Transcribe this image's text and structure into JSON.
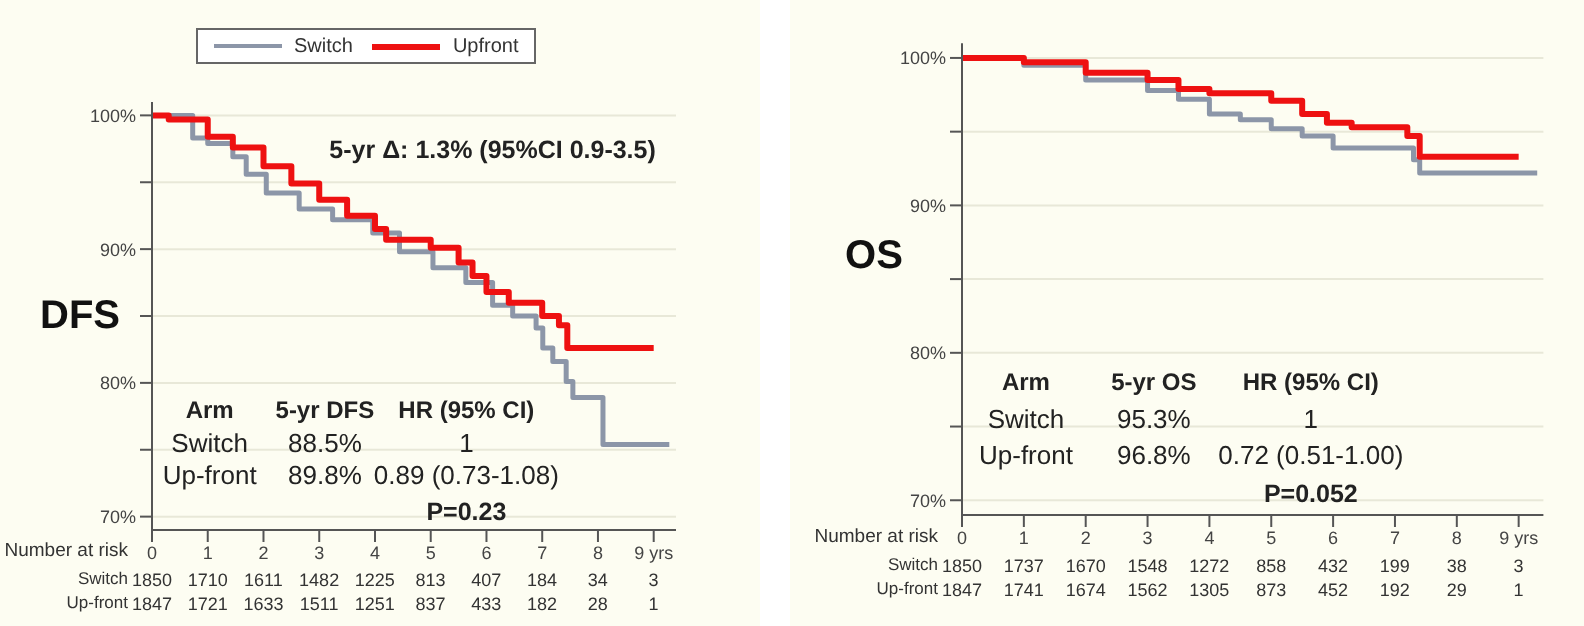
{
  "chart_data": [
    {
      "type": "step",
      "ylabel": "DFS",
      "legend": "top",
      "grid": "y",
      "marker": "none",
      "line_style": "solid",
      "xlim": [
        0,
        9.4
      ],
      "xticks": [
        0,
        1,
        2,
        3,
        4,
        5,
        6,
        7,
        8,
        {
          "value": 9,
          "label": "9 yrs"
        }
      ],
      "ylim": [
        69,
        101
      ],
      "yticks": [
        {
          "value": 70,
          "label": "70%"
        },
        {
          "value": 75,
          "label": null
        },
        {
          "value": 80,
          "label": "80%"
        },
        {
          "value": 85,
          "label": null
        },
        {
          "value": 90,
          "label": "90%"
        },
        {
          "value": 95,
          "label": null
        },
        {
          "value": 100,
          "label": "100%"
        }
      ],
      "series": [
        {
          "name": "Switch",
          "color": "#8c96a8",
          "x": [
            0,
            0.73,
            1,
            1.45,
            1.69,
            2.05,
            2.64,
            3.24,
            3.96,
            4.44,
            5.04,
            5.63,
            6.11,
            6.47,
            6.89,
            7.01,
            7.19,
            7.43,
            7.55,
            8.09,
            9.28
          ],
          "values": [
            100,
            98.3,
            97.9,
            96.9,
            95.6,
            94.2,
            93,
            92.2,
            91.2,
            89.8,
            88.6,
            87.5,
            85.8,
            85,
            84.1,
            82.6,
            81.6,
            80.1,
            78.9,
            75.4,
            75.4
          ]
        },
        {
          "name": "Upfront",
          "color": "#ee1111",
          "x": [
            0,
            0.3,
            1,
            1.45,
            2,
            2.5,
            3,
            3.5,
            4,
            4.2,
            5,
            5.5,
            5.75,
            6,
            6.4,
            7,
            7.3,
            7.45,
            9
          ],
          "values": [
            100,
            99.7,
            98.4,
            97.6,
            96.2,
            94.9,
            93.7,
            92.5,
            91.5,
            90.7,
            90.1,
            89,
            88,
            86.8,
            86,
            85,
            84.3,
            82.6,
            82.6
          ]
        }
      ],
      "annotations": [
        "5-yr Δ: 1.3% (95%CI 0.9-3.5)",
        "Arm",
        "5-yr DFS",
        "HR (95% CI)",
        "Switch",
        "88.5%",
        "1",
        "Up-front",
        "89.8%",
        "0.89 (0.73-1.08)",
        "P=0.23",
        "Number at risk",
        "Switch",
        "1850 1710 1611 1482 1225 813 407 184 34 3",
        "Up-front",
        "1847 1721 1633 1511 1251 837 433 182 28 1"
      ]
    },
    {
      "type": "step",
      "ylabel": "OS",
      "grid": "y",
      "marker": "none",
      "line_style": "solid",
      "xlim": [
        0,
        9.4
      ],
      "xticks": [
        0,
        1,
        2,
        3,
        4,
        5,
        6,
        7,
        8,
        {
          "value": 9,
          "label": "9 yrs"
        }
      ],
      "ylim": [
        69,
        101
      ],
      "yticks": [
        {
          "value": 70,
          "label": "70%"
        },
        {
          "value": 75,
          "label": null
        },
        {
          "value": 80,
          "label": "80%"
        },
        {
          "value": 85,
          "label": null
        },
        {
          "value": 90,
          "label": "90%"
        },
        {
          "value": 95,
          "label": null
        },
        {
          "value": 100,
          "label": "100%"
        }
      ],
      "series": [
        {
          "color": "#8c96a8",
          "x": [
            0,
            1,
            2,
            3,
            3.5,
            4,
            4.5,
            5,
            5.5,
            6,
            7.3,
            7.4,
            9.3
          ],
          "values": [
            100,
            99.5,
            98.5,
            97.8,
            97.2,
            96.2,
            95.8,
            95.2,
            94.7,
            93.9,
            93.1,
            92.2,
            92.2
          ]
        },
        {
          "color": "#ee1111",
          "x": [
            0,
            0.5,
            1,
            2,
            3,
            3.5,
            4,
            5,
            5.5,
            5.9,
            6.3,
            7.2,
            7.4,
            9
          ],
          "values": [
            100,
            100,
            99.7,
            99,
            98.5,
            97.9,
            97.6,
            97.1,
            96.2,
            95.6,
            95.3,
            94.7,
            93.3,
            93.3
          ]
        }
      ],
      "annotations": [
        "Arm",
        "5-yr OS",
        "HR (95% CI)",
        "Switch",
        "95.3%",
        "1",
        "Up-front",
        "96.8%",
        "0.72 (0.51-1.00)",
        "P=0.052",
        "Number at risk",
        "Switch",
        "1850 1737 1670 1548 1272 858 432 199 38 3",
        "Up-front",
        "1847 1741 1674 1562 1305 873 452 192 29 1"
      ]
    }
  ]
}
